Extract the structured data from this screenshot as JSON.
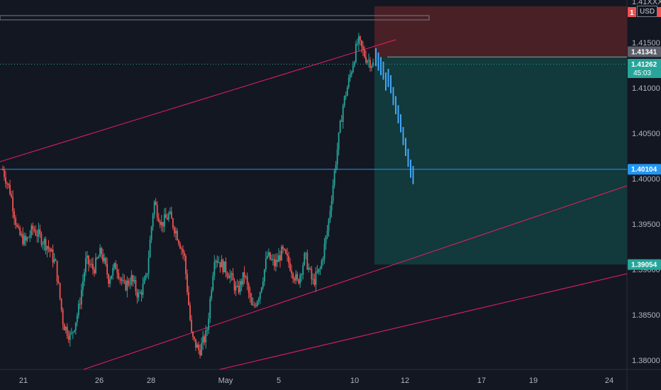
{
  "chart_data": {
    "type": "candlestick",
    "currency": "USD",
    "price_axis": {
      "ticks": [
        "1.38000",
        "1.38500",
        "1.39000",
        "1.39500",
        "1.40000",
        "1.40500",
        "1.41000",
        "1.41500"
      ],
      "ylim": [
        1.377,
        1.422
      ]
    },
    "time_axis": {
      "ticks": [
        "21",
        "26",
        "28",
        "May",
        "5",
        "10",
        "12",
        "17",
        "19",
        "24"
      ]
    },
    "price_tags": {
      "top_tag": "1",
      "current_price": "1.41262",
      "countdown": "45:03",
      "high_price": "1.41341",
      "horizontal_line_price": "1.40104",
      "target_price": "1.39054",
      "top_label_partial": "1.41XXX"
    },
    "price_path": [
      1.401,
      1.3985,
      1.394,
      1.393,
      1.3945,
      1.3935,
      1.3925,
      1.3905,
      1.384,
      1.3825,
      1.3855,
      1.391,
      1.39,
      1.392,
      1.389,
      1.3905,
      1.388,
      1.389,
      1.387,
      1.389,
      1.3975,
      1.395,
      1.396,
      1.394,
      1.3915,
      1.3825,
      1.381,
      1.383,
      1.3915,
      1.3905,
      1.3895,
      1.3875,
      1.3895,
      1.3855,
      1.3875,
      1.3915,
      1.3905,
      1.392,
      1.3905,
      1.3885,
      1.3915,
      1.3885,
      1.39,
      1.3945,
      1.4015,
      1.408,
      1.4115,
      1.4152,
      1.4134,
      1.4126
    ],
    "projection_path": [
      1.4135,
      1.413,
      1.4125,
      1.412,
      1.4108,
      1.4112,
      1.4105,
      1.4092,
      1.4082,
      1.4072,
      1.4062,
      1.4048,
      1.4036,
      1.4024,
      1.4012,
      1.4005
    ],
    "position": {
      "entry": 1.41341,
      "stop": 1.419,
      "target": 1.39054
    },
    "colors": {
      "background": "#131722",
      "up": "#26a69a",
      "down": "#ef5350",
      "projection": "#42a5f5",
      "channel": "#e91e63",
      "hline": "#2196f3",
      "stop_zone": "#4a2027",
      "target_zone": "#12393b"
    }
  }
}
